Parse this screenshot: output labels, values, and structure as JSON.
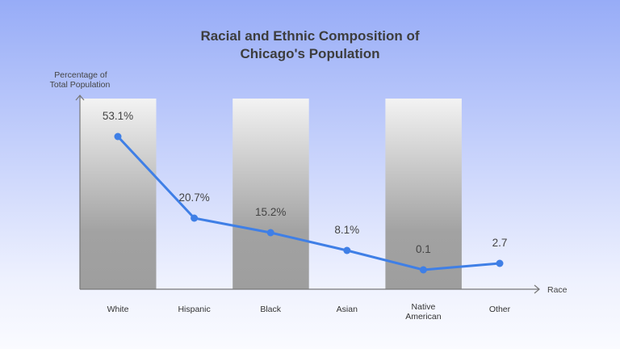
{
  "chart_data": {
    "type": "bar+line",
    "title": [
      "Racial and Ethnic Composition of",
      "Chicago's Population"
    ],
    "ylabel": [
      "Percentage of",
      "Total Population"
    ],
    "xlabel": "Race",
    "categories": [
      [
        "White"
      ],
      [
        "Hispanic"
      ],
      [
        "Black"
      ],
      [
        "Asian"
      ],
      [
        "Native",
        "American"
      ],
      [
        "Other"
      ]
    ],
    "values": [
      53.1,
      20.7,
      15.2,
      8.1,
      0.1,
      2.7
    ],
    "data_labels": [
      "53.1%",
      "20.7%",
      "15.2%",
      "8.1%",
      "0.1",
      "2.7"
    ],
    "shaded_columns": [
      "White",
      "Black",
      "Native American"
    ],
    "grid": false,
    "colors": {
      "line": "#3f7fe6",
      "bar_top": "#f3f3f3",
      "bar_bottom": "#9e9e9e",
      "axis": "#777777"
    }
  }
}
